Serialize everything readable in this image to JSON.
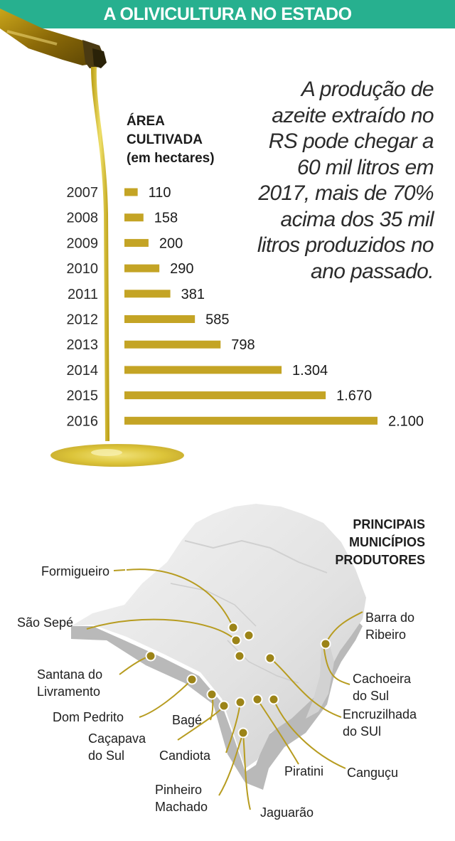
{
  "header": {
    "title": "A OLIVICULTURA NO ESTADO"
  },
  "subtitle": {
    "line1": "ÁREA",
    "line2": "CULTIVADA",
    "line3": "(em hectares)"
  },
  "quote": {
    "text": "A produção de azeite extraído no RS pode chegar a 60 mil litros em 2017, mais de 70% acima dos 35 mil litros produzidos no ano passado."
  },
  "colors": {
    "header_bg": "#27b08f",
    "bar": "#c4a425",
    "marker": "#9c8418",
    "oil": "#d9c126"
  },
  "chart_data": {
    "type": "bar",
    "orientation": "horizontal",
    "categories": [
      "2007",
      "2008",
      "2009",
      "2010",
      "2011",
      "2012",
      "2013",
      "2014",
      "2015",
      "2016"
    ],
    "values": [
      110,
      158,
      200,
      290,
      381,
      585,
      798,
      1304,
      1670,
      2100
    ],
    "value_labels": [
      "110",
      "158",
      "200",
      "290",
      "381",
      "585",
      "798",
      "1.304",
      "1.670",
      "2.100"
    ],
    "title": "ÁREA CULTIVADA (em hectares)",
    "xlim": [
      0,
      2100
    ]
  },
  "map": {
    "title_line1": "PRINCIPAIS",
    "title_line2": "MUNICÍPIOS",
    "title_line3": "PRODUTORES",
    "municipalities": [
      "Formigueiro",
      "São Sepé",
      "Barra do Ribeiro",
      "Santana do Livramento",
      "Cachoeira do Sul",
      "Dom Pedrito",
      "Encruzilhada do SUl",
      "Bagé",
      "Caçapava do Sul",
      "Candiota",
      "Piratini",
      "Canguçu",
      "Pinheiro Machado",
      "Jaguarão"
    ]
  }
}
